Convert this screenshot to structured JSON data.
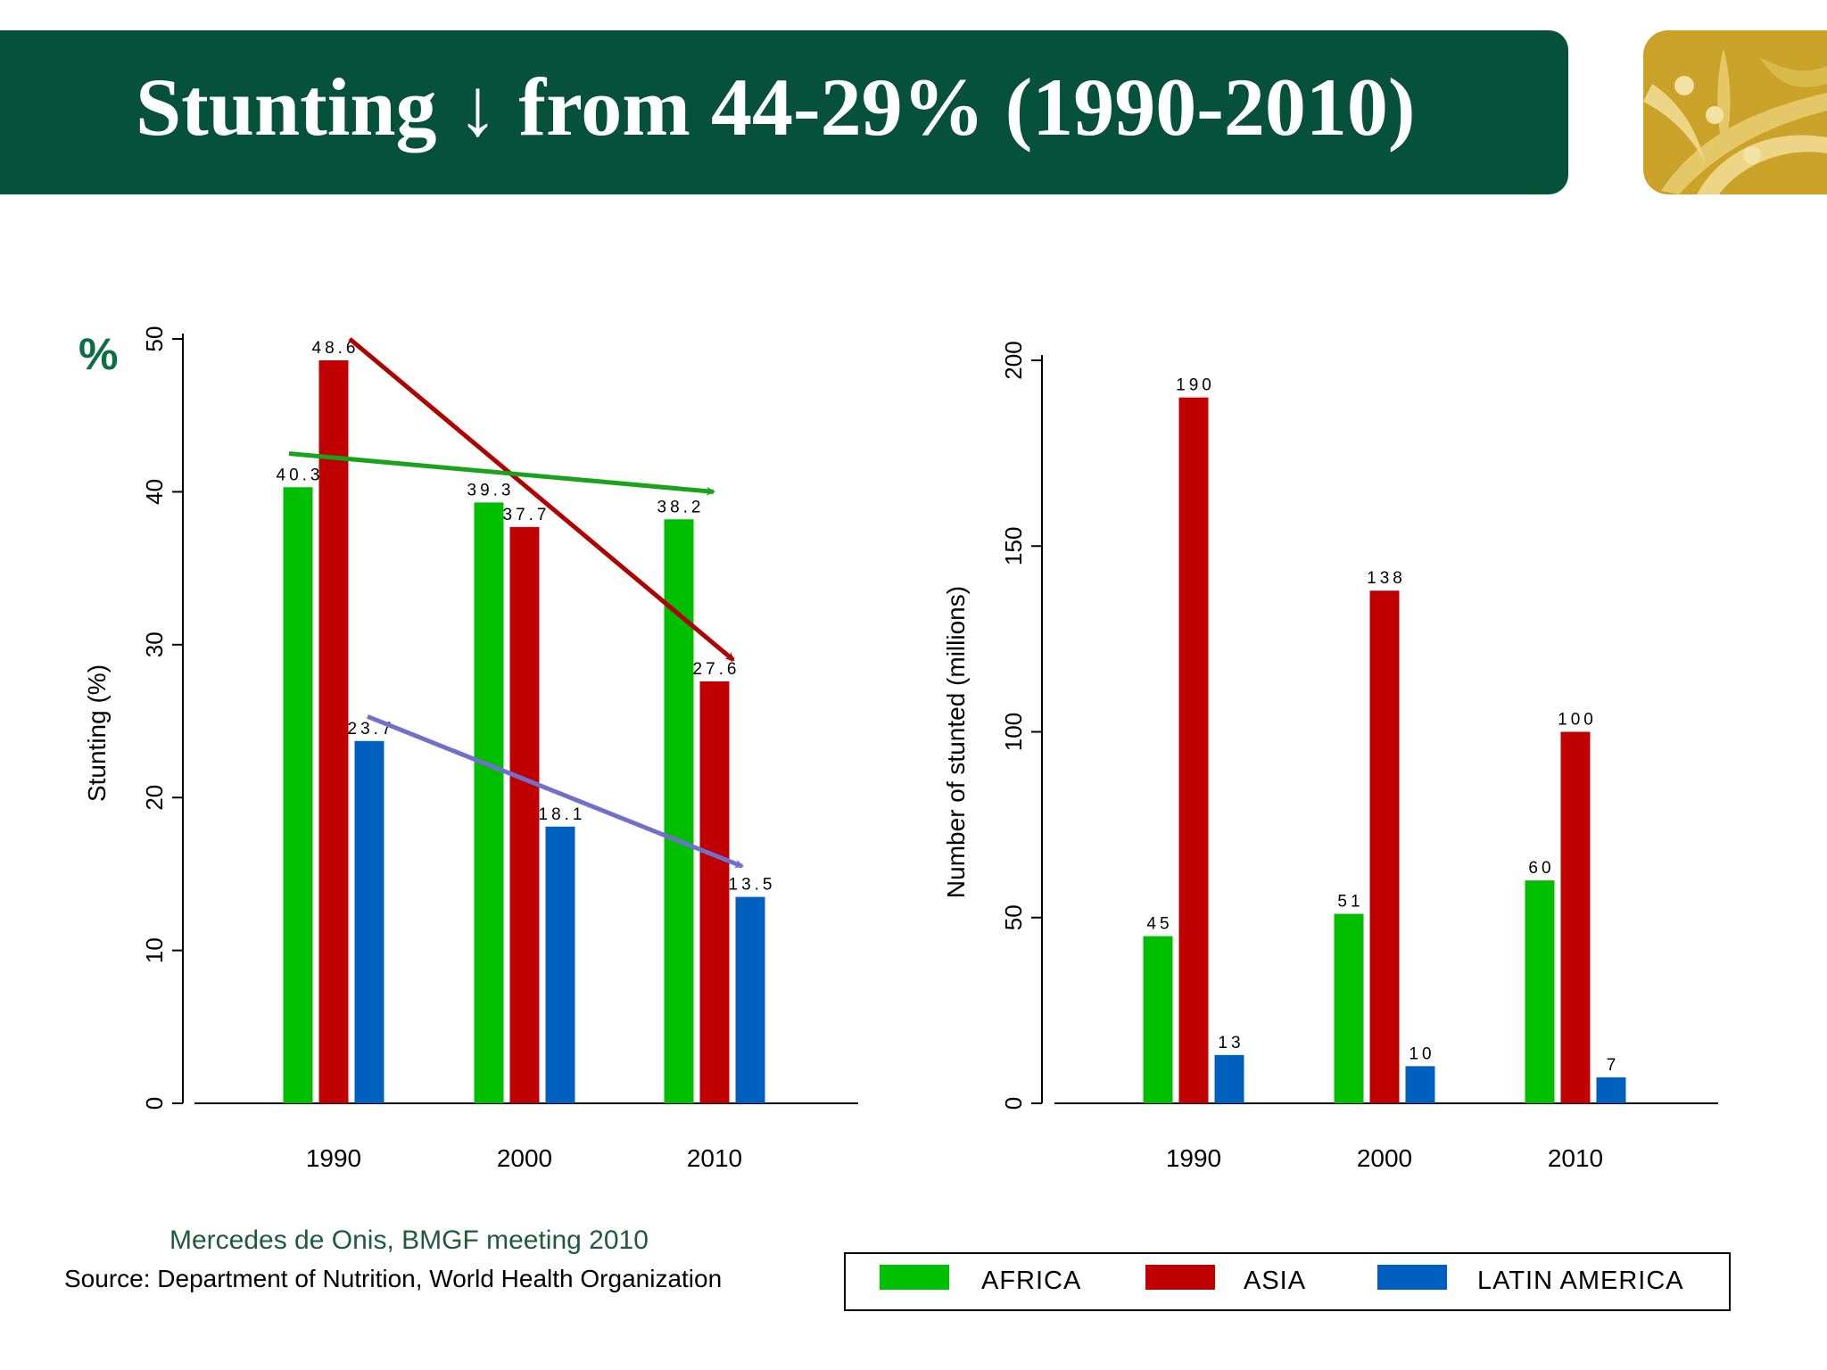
{
  "title": "Stunting ↓ from 44-29% (1990-2010)",
  "percent_symbol": "%",
  "credit": "Mercedes de Onis, BMGF meeting 2010",
  "source": "Source: Department of Nutrition, World Health Organization",
  "colors": {
    "header_bg": "#05513a",
    "africa": "#00bf00",
    "asia": "#c00000",
    "latin_america": "#0060c0",
    "logo_gold": "#c9a227"
  },
  "legend": [
    "AFRICA",
    "ASIA",
    "LATIN AMERICA"
  ],
  "chart_data": [
    {
      "type": "bar",
      "categories": [
        "1990",
        "2000",
        "2010"
      ],
      "ylabel": "Stunting (%)",
      "ylim": [
        0,
        50
      ],
      "yticks": [
        0,
        10,
        20,
        30,
        40,
        50
      ],
      "series": [
        {
          "name": "AFRICA",
          "values": [
            40.3,
            39.3,
            38.2
          ],
          "labels": [
            "40.3",
            "39.3",
            "38.2"
          ]
        },
        {
          "name": "ASIA",
          "values": [
            48.6,
            37.7,
            27.6
          ],
          "labels": [
            "48.6",
            "37.7",
            "27.6"
          ]
        },
        {
          "name": "LATIN AMERICA",
          "values": [
            23.7,
            18.1,
            13.5
          ],
          "labels": [
            "23.7",
            "18.1",
            "13.5"
          ]
        }
      ],
      "trend_arrows": [
        {
          "series": "ASIA",
          "color": "#b00000",
          "from": [
            1990,
            50.0
          ],
          "to": [
            2010,
            29.0
          ]
        },
        {
          "series": "AFRICA",
          "color": "#1aa31a",
          "from": [
            1990,
            42.5
          ],
          "to": [
            2010,
            40.0
          ]
        },
        {
          "series": "LATIN AMERICA",
          "color": "#7070cc",
          "from": [
            1990,
            25.3
          ],
          "to": [
            2010,
            15.5
          ]
        }
      ]
    },
    {
      "type": "bar",
      "categories": [
        "1990",
        "2000",
        "2010"
      ],
      "ylabel": "Number of stunted (millions)",
      "ylim": [
        0,
        200
      ],
      "yticks": [
        0,
        50,
        100,
        150,
        200
      ],
      "series": [
        {
          "name": "AFRICA",
          "values": [
            45,
            51,
            60
          ],
          "labels": [
            "45",
            "51",
            "60"
          ]
        },
        {
          "name": "ASIA",
          "values": [
            190,
            138,
            100
          ],
          "labels": [
            "190",
            "138",
            "100"
          ]
        },
        {
          "name": "LATIN AMERICA",
          "values": [
            13,
            10,
            7
          ],
          "labels": [
            "13",
            "10",
            "7"
          ]
        }
      ]
    }
  ]
}
